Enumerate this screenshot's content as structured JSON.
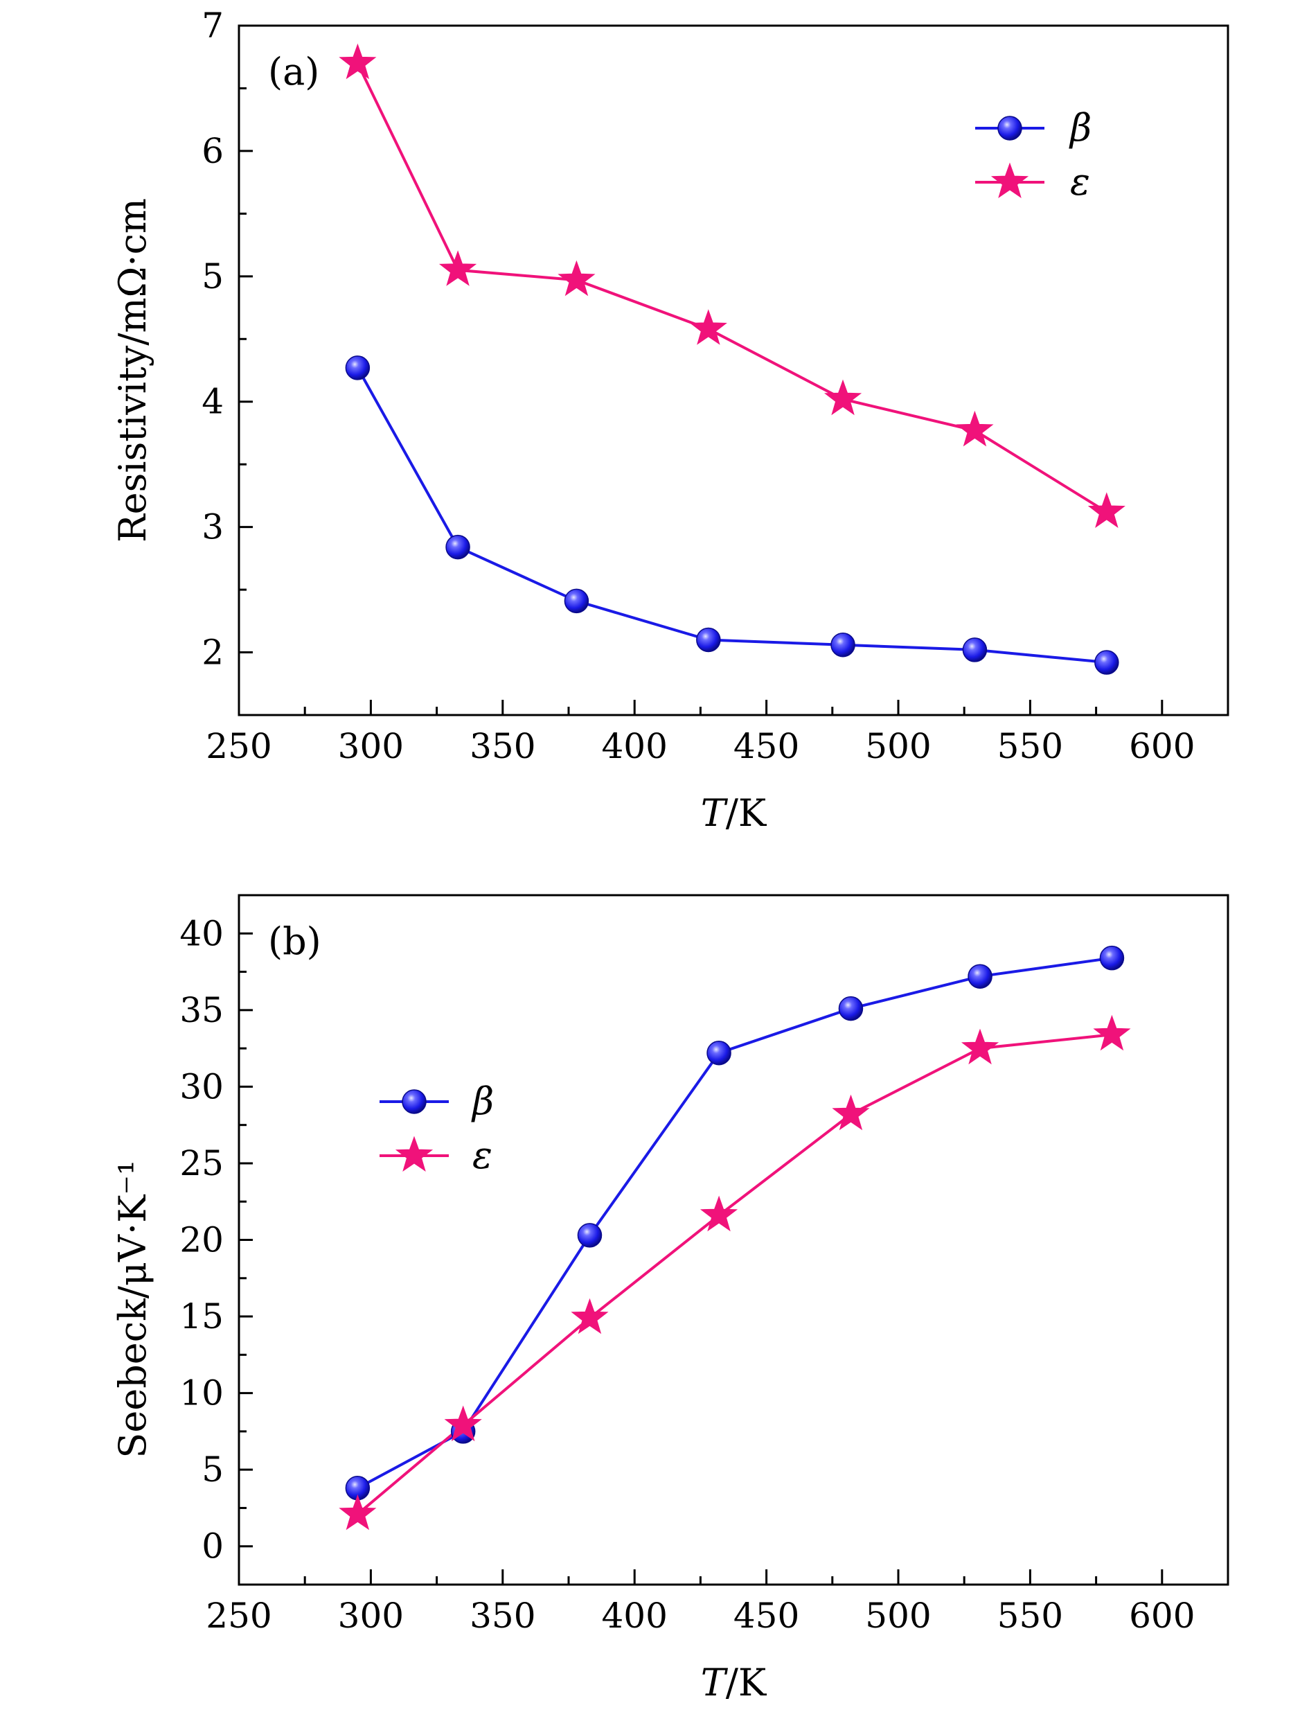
{
  "chart_data": [
    {
      "type": "line",
      "panel_label": "(a)",
      "xlabel": "T/K",
      "ylabel": "Resistivity/mΩ·cm",
      "xlim": [
        250,
        625
      ],
      "ylim": [
        1.5,
        7
      ],
      "xticks": [
        250,
        300,
        350,
        400,
        450,
        500,
        550,
        600
      ],
      "yticks": [
        2,
        3,
        4,
        5,
        6,
        7
      ],
      "legend_position": "top-right",
      "series": [
        {
          "name": "β",
          "marker": "sphere",
          "color": "#1a1ae6",
          "x": [
            295,
            333,
            378,
            428,
            479,
            529,
            579
          ],
          "y": [
            4.27,
            2.84,
            2.41,
            2.1,
            2.06,
            2.02,
            1.92
          ]
        },
        {
          "name": "ε",
          "marker": "star",
          "color": "#f0127a",
          "x": [
            295,
            333,
            378,
            428,
            479,
            529,
            579
          ],
          "y": [
            6.7,
            5.05,
            4.97,
            4.58,
            4.02,
            3.77,
            3.12
          ]
        }
      ]
    },
    {
      "type": "line",
      "panel_label": "(b)",
      "xlabel": "T/K",
      "ylabel": "Seebeck/μV·K⁻¹",
      "xlim": [
        250,
        625
      ],
      "ylim": [
        -2.5,
        42.5
      ],
      "xticks": [
        250,
        300,
        350,
        400,
        450,
        500,
        550,
        600
      ],
      "yticks": [
        0,
        5,
        10,
        15,
        20,
        25,
        30,
        35,
        40
      ],
      "legend_position": "upper-left",
      "series": [
        {
          "name": "β",
          "marker": "sphere",
          "color": "#1a1ae6",
          "x": [
            295,
            335,
            383,
            432,
            482,
            531,
            581
          ],
          "y": [
            3.8,
            7.5,
            20.3,
            32.2,
            35.1,
            37.2,
            38.4
          ]
        },
        {
          "name": "ε",
          "marker": "star",
          "color": "#f0127a",
          "x": [
            295,
            335,
            383,
            432,
            482,
            531,
            581
          ],
          "y": [
            2.1,
            7.9,
            14.9,
            21.6,
            28.2,
            32.5,
            33.4
          ]
        }
      ]
    }
  ]
}
